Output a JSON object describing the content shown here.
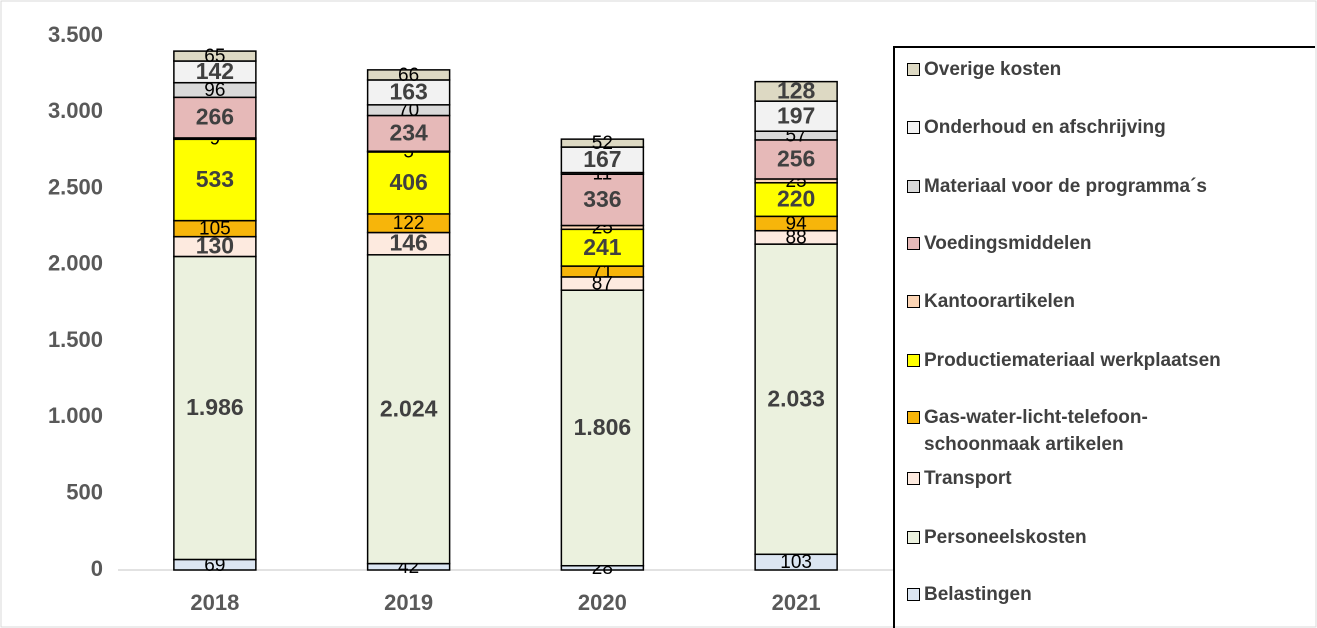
{
  "chart_data": {
    "type": "bar",
    "stacked": true,
    "categories": [
      "2018",
      "2019",
      "2020",
      "2021"
    ],
    "ylim": [
      0,
      3500
    ],
    "yticks": [
      0,
      500,
      {
        "value": 1000,
        "label": "1.000"
      },
      {
        "value": 1500,
        "label": "1.500"
      },
      {
        "value": 2000,
        "label": "2.000"
      },
      {
        "value": 2500,
        "label": "2.500"
      },
      {
        "value": 3000,
        "label": "3.000"
      },
      {
        "value": 3500,
        "label": "3.500"
      }
    ],
    "series": [
      {
        "name": "Belastingen",
        "color": "#dce6f2",
        "values": [
          69,
          42,
          28,
          103
        ]
      },
      {
        "name": "Personeelskosten",
        "color": "#ebf1de",
        "values": [
          1986,
          2024,
          1806,
          2033
        ],
        "value_labels": [
          "1.986",
          "2.024",
          "1.806",
          "2.033"
        ]
      },
      {
        "name": "Transport",
        "color": "#fdeadf",
        "values": [
          130,
          146,
          87,
          88
        ]
      },
      {
        "name": "Gas-water-licht-telefoon-schoonmaak artikelen",
        "color": "#f7b50a",
        "values": [
          105,
          122,
          71,
          94
        ]
      },
      {
        "name": "Productiemateriaal werkplaatsen",
        "color": "#ffff00",
        "values": [
          533,
          406,
          241,
          220
        ]
      },
      {
        "name": "Kantoorartikelen",
        "color": "#fcd5b5",
        "values": [
          9,
          5,
          25,
          25
        ]
      },
      {
        "name": "Voedingsmiddelen",
        "color": "#e6b9b8",
        "values": [
          266,
          234,
          336,
          256
        ]
      },
      {
        "name": "Materiaal voor de programma´s",
        "color": "#d9d9d9",
        "values": [
          96,
          70,
          11,
          57
        ]
      },
      {
        "name": "Onderhoud en afschrijving",
        "color": "#f2f2f2",
        "values": [
          142,
          163,
          167,
          197
        ]
      },
      {
        "name": "Overige kosten",
        "color": "#ddd9c3",
        "values": [
          65,
          66,
          52,
          128
        ]
      }
    ],
    "legend": "right"
  }
}
